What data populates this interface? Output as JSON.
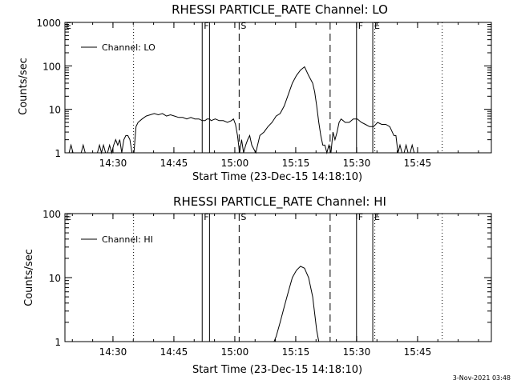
{
  "footer_date": "3-Nov-2021 03:48",
  "chart_data": [
    {
      "type": "line",
      "title": "RHESSI PARTICLE_RATE Channel: LO",
      "xlabel": "Start Time (23-Dec-15 14:18:10)",
      "ylabel": "Counts/sec",
      "y_scale": "log",
      "ylim": [
        1,
        1000
      ],
      "yticks": [
        "1",
        "10",
        "100",
        "1000"
      ],
      "x_unit": "minutes after 14:18:10",
      "xlim": [
        0,
        105
      ],
      "xticks": [
        {
          "x": 11.83,
          "label": "14:30"
        },
        {
          "x": 26.83,
          "label": "14:45"
        },
        {
          "x": 41.83,
          "label": "15:00"
        },
        {
          "x": 56.83,
          "label": "15:15"
        },
        {
          "x": 71.83,
          "label": "15:30"
        },
        {
          "x": 86.83,
          "label": "15:45"
        }
      ],
      "legend": {
        "placement": "top-left",
        "label": "Channel: LO"
      },
      "grid": false,
      "markers": [
        {
          "kind": "dotted",
          "x": 16.9,
          "label": ""
        },
        {
          "kind": "solid",
          "x": 33.8,
          "label": "F"
        },
        {
          "kind": "solid",
          "x": 35.6,
          "label": ""
        },
        {
          "kind": "dashed",
          "x": 42.9,
          "label": "S"
        },
        {
          "kind": "dashed",
          "x": 65.3,
          "label": ""
        },
        {
          "kind": "solid",
          "x": 71.8,
          "label": "F"
        },
        {
          "kind": "solid",
          "x": 75.8,
          "label": "E"
        },
        {
          "kind": "dotted",
          "x": 76.3,
          "label": ""
        },
        {
          "kind": "dotted",
          "x": 92.9,
          "label": ""
        }
      ],
      "left_edge_label": "E",
      "series": [
        {
          "name": "Channel: LO",
          "x": [
            0,
            1,
            1.5,
            2,
            2.5,
            3,
            4,
            4.5,
            5,
            5.5,
            6,
            8,
            8.5,
            9,
            9.5,
            10,
            10.5,
            11,
            11.5,
            12,
            12.5,
            13,
            13.5,
            14,
            14.5,
            15,
            15.5,
            16,
            16.5,
            17,
            17.5,
            18,
            19,
            20,
            21,
            22,
            23,
            24,
            25,
            26,
            27,
            28,
            29,
            30,
            31,
            32,
            33,
            33.8,
            34.5,
            35,
            35.6,
            36,
            37,
            38,
            39,
            40,
            41,
            41.5,
            42,
            42.5,
            43,
            43.5,
            44,
            44.5,
            45,
            45.5,
            46,
            47,
            48,
            49,
            50,
            51,
            52,
            53,
            54,
            55,
            56,
            57,
            58,
            59,
            60,
            61,
            61.5,
            62,
            62.5,
            63,
            63.5,
            64,
            64.5,
            65,
            65.5,
            66,
            66.5,
            67,
            67.5,
            68,
            68.5,
            69,
            70,
            71,
            72,
            73,
            74,
            75,
            76,
            77,
            78,
            79,
            80,
            81,
            81.5,
            82,
            82.5,
            83,
            83.5,
            84,
            84.5,
            85,
            85.5,
            86,
            87,
            88
          ],
          "values": [
            1,
            1,
            1.5,
            1,
            1,
            1,
            1,
            1.5,
            1,
            1,
            1,
            1,
            1.5,
            1,
            1.5,
            1,
            1,
            1.5,
            1,
            1.5,
            2,
            1.5,
            2,
            1,
            2,
            2.5,
            2.5,
            2,
            1,
            1,
            4,
            5,
            6,
            7,
            7.5,
            8,
            7.5,
            8,
            7,
            7.5,
            7,
            6.5,
            6.5,
            6,
            6.5,
            6,
            6,
            5.5,
            5.5,
            6,
            6,
            5.5,
            6,
            5.5,
            5.5,
            5,
            5.5,
            6,
            4.5,
            2.5,
            1,
            2,
            1,
            1.5,
            2,
            2.5,
            1.5,
            1,
            2.5,
            3,
            4,
            5,
            7,
            8,
            12,
            22,
            40,
            60,
            80,
            95,
            60,
            40,
            25,
            12,
            5,
            2.5,
            1.5,
            1.5,
            1,
            1.5,
            1,
            3,
            2,
            3,
            5,
            6,
            5.5,
            5,
            5,
            6,
            6,
            5,
            4.5,
            4,
            4,
            5,
            4.5,
            4.5,
            4,
            2.5,
            2.5,
            1,
            1.5,
            1,
            1,
            1.5,
            1,
            1,
            1.5,
            1,
            1,
            1
          ]
        }
      ]
    },
    {
      "type": "line",
      "title": "RHESSI PARTICLE_RATE Channel: HI",
      "xlabel": "Start Time (23-Dec-15 14:18:10)",
      "ylabel": "Counts/sec",
      "y_scale": "log",
      "ylim": [
        1,
        100
      ],
      "yticks": [
        "1",
        "10",
        "100"
      ],
      "x_unit": "minutes after 14:18:10",
      "xlim": [
        0,
        105
      ],
      "xticks": [
        {
          "x": 11.83,
          "label": "14:30"
        },
        {
          "x": 26.83,
          "label": "14:45"
        },
        {
          "x": 41.83,
          "label": "15:00"
        },
        {
          "x": 56.83,
          "label": "15:15"
        },
        {
          "x": 71.83,
          "label": "15:30"
        },
        {
          "x": 86.83,
          "label": "15:45"
        }
      ],
      "legend": {
        "placement": "top-left",
        "label": "Channel: HI"
      },
      "grid": false,
      "markers": [
        {
          "kind": "dotted",
          "x": 16.9,
          "label": ""
        },
        {
          "kind": "solid",
          "x": 33.8,
          "label": "F"
        },
        {
          "kind": "solid",
          "x": 35.6,
          "label": ""
        },
        {
          "kind": "dashed",
          "x": 42.9,
          "label": "S"
        },
        {
          "kind": "dashed",
          "x": 65.3,
          "label": ""
        },
        {
          "kind": "solid",
          "x": 71.8,
          "label": "F"
        },
        {
          "kind": "solid",
          "x": 75.8,
          "label": "E"
        },
        {
          "kind": "dotted",
          "x": 76.3,
          "label": ""
        },
        {
          "kind": "dotted",
          "x": 92.9,
          "label": ""
        }
      ],
      "left_edge_label": "E",
      "series": [
        {
          "name": "Channel: HI",
          "x": [
            51.5,
            52,
            53,
            54,
            55,
            56,
            57,
            58,
            59,
            60,
            61,
            62,
            62.5
          ],
          "values": [
            1,
            1.2,
            2,
            3.5,
            6,
            10,
            13,
            15,
            14,
            10,
            5,
            1.5,
            1
          ]
        }
      ]
    }
  ]
}
